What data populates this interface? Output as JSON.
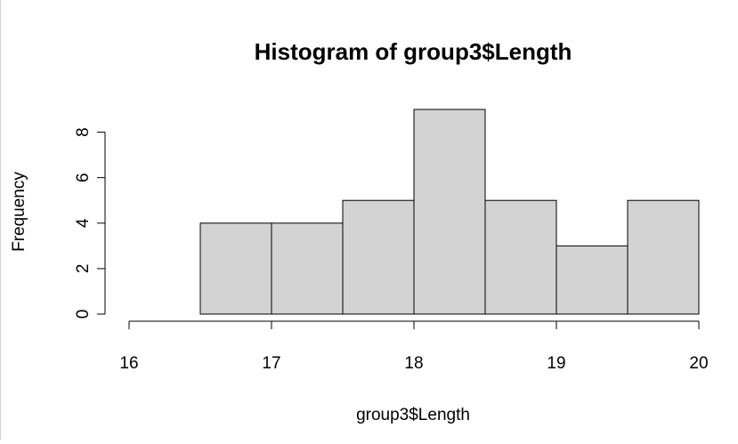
{
  "chart_data": {
    "type": "bar",
    "title": "Histogram of group3$Length",
    "xlabel": "group3$Length",
    "ylabel": "Frequency",
    "bins": [
      {
        "from": 16.5,
        "to": 17.0,
        "count": 4
      },
      {
        "from": 17.0,
        "to": 17.5,
        "count": 4
      },
      {
        "from": 17.5,
        "to": 18.0,
        "count": 5
      },
      {
        "from": 18.0,
        "to": 18.5,
        "count": 9
      },
      {
        "from": 18.5,
        "to": 19.0,
        "count": 5
      },
      {
        "from": 19.0,
        "to": 19.5,
        "count": 3
      },
      {
        "from": 19.5,
        "to": 20.0,
        "count": 5
      }
    ],
    "xlim": [
      16,
      20
    ],
    "ylim": [
      0,
      9
    ],
    "x_ticks": [
      "16",
      "17",
      "18",
      "19",
      "20"
    ],
    "y_ticks": [
      "0",
      "2",
      "4",
      "6",
      "8"
    ],
    "bar_fill": "#d3d3d3",
    "bar_stroke": "#000000",
    "grid": false,
    "legend": "none"
  }
}
